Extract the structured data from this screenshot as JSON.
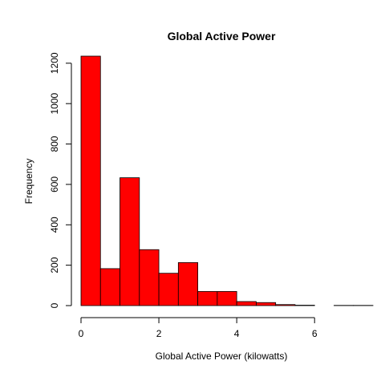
{
  "chart_data": {
    "type": "histogram",
    "title": "Global Active Power",
    "xlabel": "Global Active Power (kilowatts)",
    "ylabel": "Frequency",
    "bin_edges": [
      0,
      0.5,
      1,
      1.5,
      2,
      2.5,
      3,
      3.5,
      4,
      4.5,
      5,
      5.5,
      6,
      6.5,
      7,
      7.5
    ],
    "values": [
      1235,
      183,
      633,
      277,
      160,
      213,
      70,
      70,
      20,
      15,
      5,
      2,
      0,
      1,
      1
    ],
    "xlim": [
      0,
      7.5
    ],
    "ylim": [
      0,
      1235
    ],
    "x_ticks": [
      0,
      2,
      4,
      6
    ],
    "y_ticks": [
      0,
      200,
      400,
      600,
      800,
      1000,
      1200
    ],
    "bar_color": "#ff0000",
    "border_color": "#000000",
    "grid": false,
    "legend": "none"
  }
}
